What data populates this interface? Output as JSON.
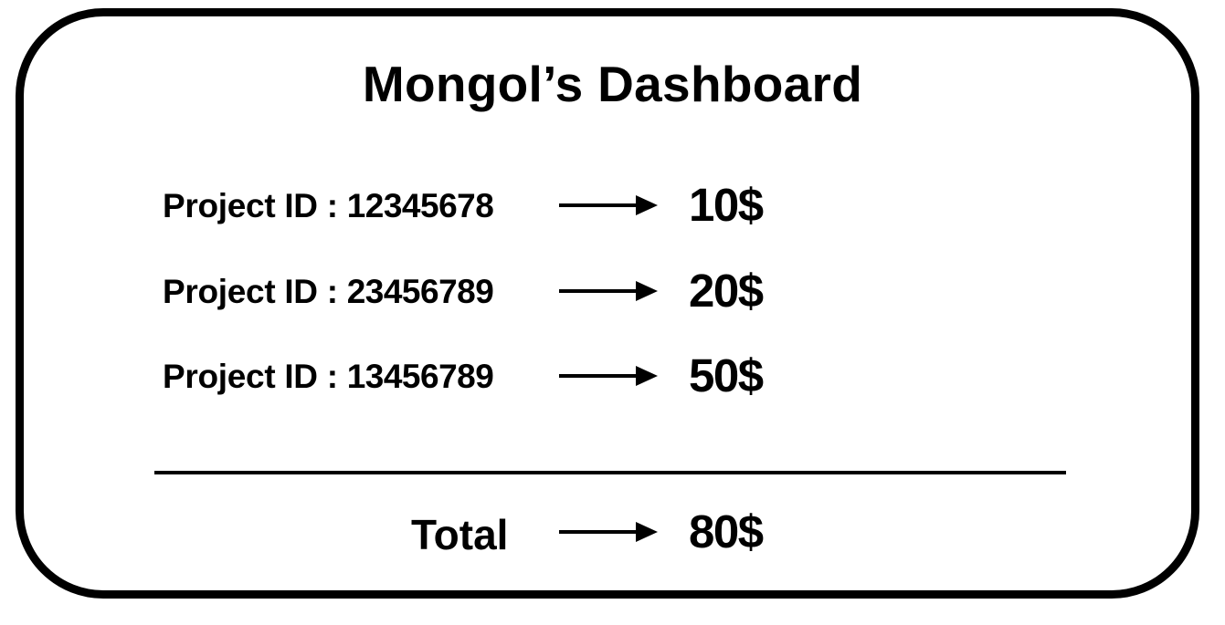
{
  "dashboard": {
    "title": "Mongol’s Dashboard",
    "projects": [
      {
        "label": "Project ID : ",
        "id": "12345678",
        "amount": "10$"
      },
      {
        "label": "Project ID : ",
        "id": "23456789",
        "amount": "20$"
      },
      {
        "label": "Project ID : ",
        "id": "13456789",
        "amount": "50$"
      }
    ],
    "total": {
      "label": "Total",
      "amount": "80$"
    }
  },
  "colors": {
    "foreground": "#000000",
    "background": "#ffffff"
  },
  "icons": {
    "row_arrow": "arrow-right-icon"
  }
}
